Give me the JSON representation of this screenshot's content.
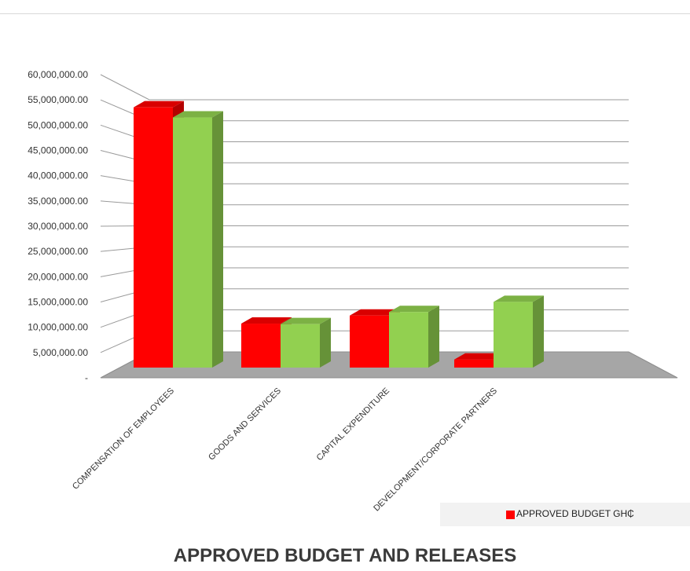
{
  "chart_data": {
    "type": "bar",
    "title": "APPROVED BUDGET AND RELEASES",
    "categories": [
      "COMPENSATION OF EMPLOYEES",
      "GOODS AND SERVICES",
      "CAPITAL EXPENDITURE",
      "DEVELOPMENT/CORPORATE PARTNERS"
    ],
    "series": [
      {
        "name": "APPROVED BUDGET GH₵",
        "color": "#ff0000",
        "values": [
          51500000,
          8700000,
          10300000,
          1600000
        ]
      },
      {
        "color": "#92d050",
        "values": [
          49500000,
          8600000,
          11000000,
          13000000
        ]
      }
    ],
    "ylim": [
      0,
      60000000
    ],
    "yticks": [
      0,
      5000000,
      10000000,
      15000000,
      20000000,
      25000000,
      30000000,
      35000000,
      40000000,
      45000000,
      50000000,
      55000000,
      60000000
    ],
    "ytick_labels": [
      "-",
      "5,000,000.00",
      "10,000,000.00",
      "15,000,000.00",
      "20,000,000.00",
      "25,000,000.00",
      "30,000,000.00",
      "35,000,000.00",
      "40,000,000.00",
      "45,000,000.00",
      "50,000,000.00",
      "55,000,000.00",
      "60,000,000.00"
    ],
    "grid": true,
    "three_d": true,
    "legend_position": "bottom-right"
  }
}
